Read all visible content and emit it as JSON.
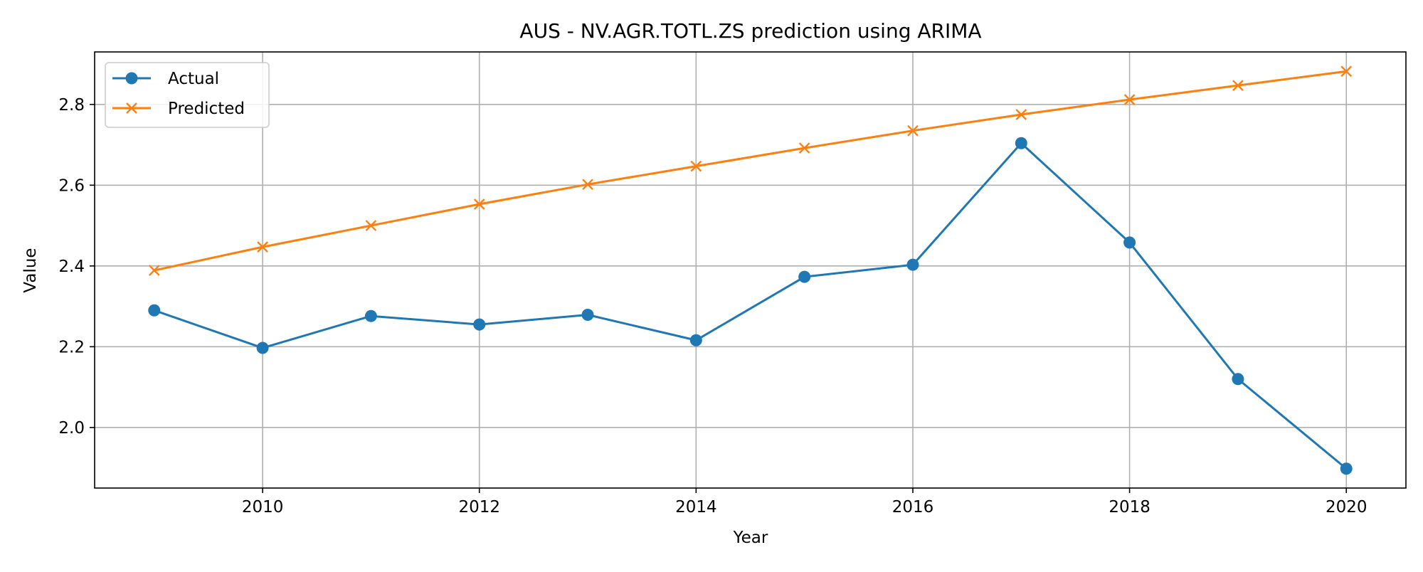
{
  "chart_data": {
    "type": "line",
    "title": "AUS - NV.AGR.TOTL.ZS prediction using ARIMA",
    "xlabel": "Year",
    "ylabel": "Value",
    "x": [
      2009,
      2010,
      2011,
      2012,
      2013,
      2014,
      2015,
      2016,
      2017,
      2018,
      2019,
      2020
    ],
    "xlim": [
      2008.45,
      2020.55
    ],
    "ylim": [
      1.85,
      2.93
    ],
    "x_ticks": [
      2010,
      2012,
      2014,
      2016,
      2018,
      2020
    ],
    "y_ticks": [
      2.0,
      2.2,
      2.4,
      2.6,
      2.8
    ],
    "grid": true,
    "legend_position": "upper-left",
    "series": [
      {
        "name": "Actual",
        "color": "#1f77b4",
        "marker": "circle",
        "values": [
          2.29,
          2.197,
          2.276,
          2.255,
          2.279,
          2.216,
          2.373,
          2.403,
          2.704,
          2.458,
          2.12,
          1.898
        ]
      },
      {
        "name": "Predicted",
        "color": "#ff7f0e",
        "marker": "x",
        "values": [
          2.389,
          2.447,
          2.5,
          2.553,
          2.602,
          2.647,
          2.692,
          2.735,
          2.775,
          2.812,
          2.847,
          2.882
        ]
      }
    ]
  }
}
